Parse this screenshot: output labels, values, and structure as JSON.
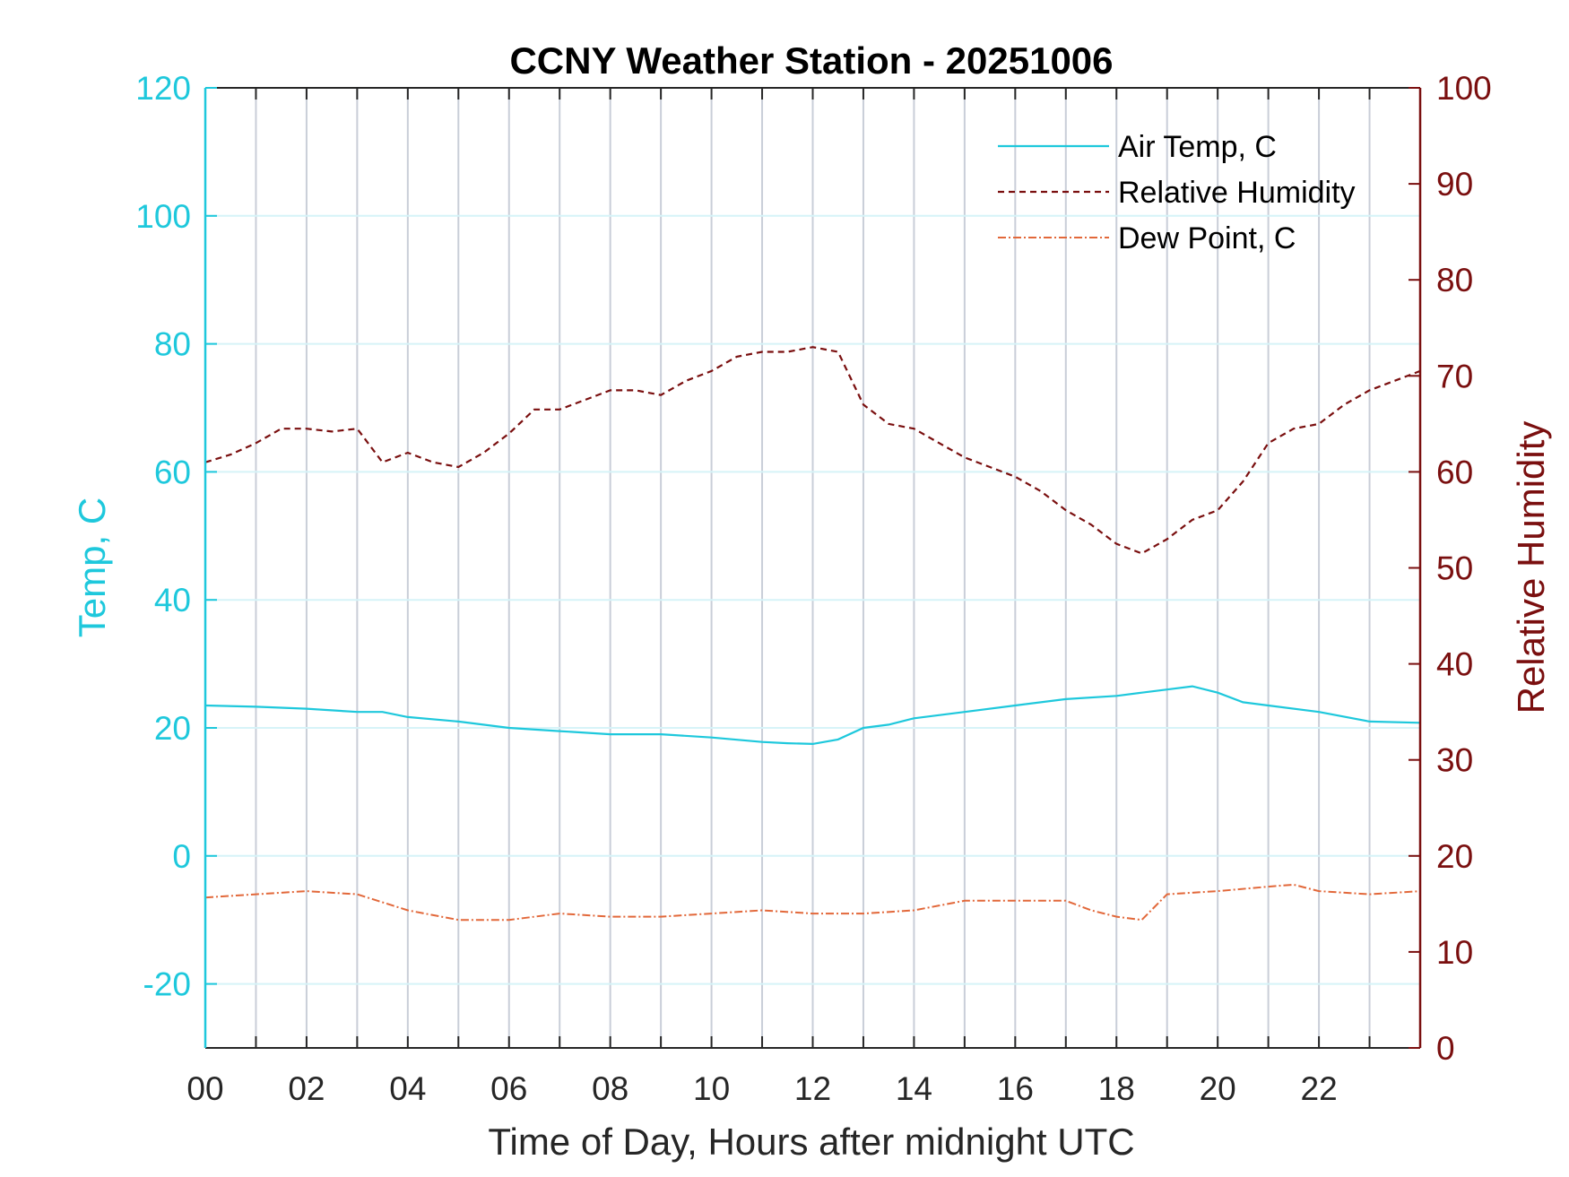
{
  "chart_data": {
    "type": "line",
    "title": "CCNY Weather Station - 20251006",
    "xlabel": "Time of Day, Hours after midnight UTC",
    "ylabel_left": "Temp, C",
    "ylabel_right": "Relative Humidity",
    "xlim": [
      0,
      24
    ],
    "ylim_left": [
      -30,
      120
    ],
    "ylim_right": [
      0,
      100
    ],
    "x_ticks": [
      0,
      2,
      4,
      6,
      8,
      10,
      12,
      14,
      16,
      18,
      20,
      22
    ],
    "x_tick_labels": [
      "00",
      "02",
      "04",
      "06",
      "08",
      "10",
      "12",
      "14",
      "16",
      "18",
      "20",
      "22"
    ],
    "y_left_ticks": [
      -20,
      0,
      20,
      40,
      60,
      80,
      100,
      120
    ],
    "y_left_tick_labels": [
      "-20",
      "0",
      "20",
      "40",
      "60",
      "80",
      "100",
      "120"
    ],
    "y_right_ticks": [
      0,
      10,
      20,
      30,
      40,
      50,
      60,
      70,
      80,
      90,
      100
    ],
    "y_right_tick_labels": [
      "0",
      "10",
      "20",
      "30",
      "40",
      "50",
      "60",
      "70",
      "80",
      "90",
      "100"
    ],
    "grid": true,
    "legend_position": "top-right",
    "colors": {
      "temp": "#1ec8dc",
      "rh": "#7a0f0f",
      "dew": "#e2683a",
      "axis": "#000000",
      "vgrid": "#c9ced8",
      "hgrid": "#d6f3f8"
    },
    "series": [
      {
        "name": "Air Temp, C",
        "axis": "left",
        "style": "solid",
        "x": [
          0,
          1,
          2,
          3,
          3.5,
          4,
          5,
          6,
          7,
          8,
          9,
          10,
          11,
          11.5,
          12,
          12.5,
          13,
          13.5,
          14,
          15,
          16,
          17,
          18,
          18.5,
          19,
          19.5,
          20,
          20.5,
          21,
          22,
          23,
          24
        ],
        "y": [
          23.5,
          23.3,
          23,
          22.5,
          22.5,
          21.7,
          21,
          20,
          19.5,
          19,
          19,
          18.5,
          17.8,
          17.6,
          17.5,
          18.2,
          20,
          20.5,
          21.5,
          22.5,
          23.5,
          24.5,
          25,
          25.5,
          26,
          26.5,
          25.5,
          24,
          23.5,
          22.5,
          21,
          20.8
        ]
      },
      {
        "name": "Relative Humidity",
        "axis": "right",
        "style": "dashed",
        "x": [
          0,
          0.5,
          1,
          1.5,
          2,
          2.5,
          3,
          3.5,
          4,
          4.5,
          5,
          5.5,
          6,
          6.5,
          7,
          7.5,
          8,
          8.5,
          9,
          9.5,
          10,
          10.5,
          11,
          11.5,
          12,
          12.5,
          13,
          13.5,
          14,
          14.5,
          15,
          15.5,
          16,
          16.5,
          17,
          17.5,
          18,
          18.5,
          19,
          19.5,
          20,
          20.5,
          21,
          21.5,
          22,
          22.5,
          23,
          23.5,
          24
        ],
        "y": [
          61,
          61.8,
          63,
          64.5,
          64.5,
          64.2,
          64.5,
          61,
          62,
          61,
          60.5,
          62,
          64,
          66.5,
          66.5,
          67.5,
          68.5,
          68.5,
          68,
          69.5,
          70.5,
          72,
          72.5,
          72.5,
          73,
          72.5,
          67,
          65,
          64.5,
          63,
          61.5,
          60.5,
          59.5,
          58,
          56,
          54.5,
          52.5,
          51.5,
          53,
          55,
          56,
          59,
          63,
          64.5,
          65,
          67,
          68.5,
          69.5,
          70.5
        ]
      },
      {
        "name": "Dew Point, C",
        "axis": "left",
        "style": "dash-dot",
        "x": [
          0,
          1,
          2,
          3,
          4,
          5,
          6,
          7,
          8,
          9,
          10,
          11,
          12,
          13,
          14,
          15,
          16,
          17,
          17.5,
          18,
          18.5,
          19,
          20,
          21,
          21.5,
          22,
          23,
          24
        ],
        "y": [
          -6.5,
          -6,
          -5.5,
          -6,
          -8.5,
          -10,
          -10,
          -9,
          -9.5,
          -9.5,
          -9,
          -8.5,
          -9,
          -9,
          -8.5,
          -7,
          -7,
          -7,
          -8.5,
          -9.5,
          -10,
          -6,
          -5.5,
          -4.8,
          -4.5,
          -5.5,
          -6,
          -5.5
        ]
      }
    ]
  }
}
